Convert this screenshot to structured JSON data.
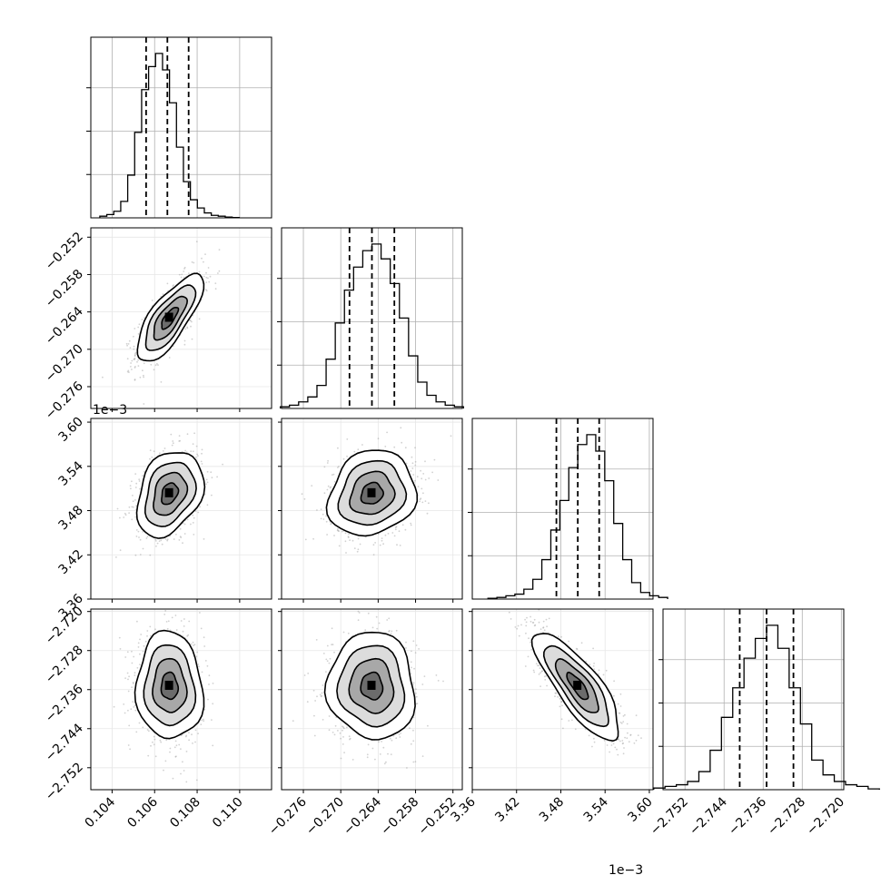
{
  "chart_data": {
    "type": "corner",
    "description_free": true,
    "parameters": [
      {
        "range": [
          0.103,
          0.1115
        ],
        "ticks": [
          0.104,
          0.106,
          0.108,
          0.11
        ],
        "tick_labels": [
          "0.104",
          "0.106",
          "0.108",
          "0.110"
        ],
        "quantiles": [
          0.1056,
          0.1066,
          0.1076
        ],
        "mean": 0.1067,
        "sd": 0.00078,
        "offset_text": ""
      },
      {
        "range": [
          -0.2795,
          -0.2505
        ],
        "ticks": [
          -0.276,
          -0.27,
          -0.264,
          -0.258,
          -0.252
        ],
        "tick_labels": [
          "−0.276",
          "−0.270",
          "−0.264",
          "−0.258",
          "−0.252"
        ],
        "quantiles": [
          -0.2686,
          -0.265,
          -0.2614
        ],
        "mean": -0.265,
        "sd": 0.0035,
        "offset_text": ""
      },
      {
        "range": [
          3.36,
          3.605
        ],
        "ticks": [
          3.36,
          3.42,
          3.48,
          3.54,
          3.6
        ],
        "tick_labels": [
          "3.36",
          "3.42",
          "3.48",
          "3.54",
          "3.60"
        ],
        "quantiles": [
          3.474,
          3.503,
          3.532
        ],
        "mean": 3.503,
        "sd": 0.029,
        "offset_text": "1e−3"
      },
      {
        "range": [
          -2.7565,
          -2.7195
        ],
        "ticks": [
          -2.752,
          -2.744,
          -2.736,
          -2.728,
          -2.72
        ],
        "tick_labels": [
          "−2.752",
          "−2.744",
          "−2.736",
          "−2.728",
          "−2.720"
        ],
        "quantiles": [
          -2.7408,
          -2.7353,
          -2.7298
        ],
        "mean": -2.7353,
        "sd": 0.0055,
        "offset_text": "1e−3"
      }
    ],
    "histograms": [
      [
        0.01,
        0.02,
        0.04,
        0.1,
        0.26,
        0.52,
        0.78,
        0.92,
        1.0,
        0.9,
        0.7,
        0.43,
        0.22,
        0.11,
        0.06,
        0.03,
        0.015,
        0.01,
        0.005,
        0.002
      ],
      [
        0.01,
        0.02,
        0.04,
        0.07,
        0.14,
        0.3,
        0.52,
        0.72,
        0.86,
        0.96,
        1.0,
        0.91,
        0.76,
        0.55,
        0.32,
        0.16,
        0.08,
        0.04,
        0.02,
        0.01
      ],
      [
        0.005,
        0.01,
        0.02,
        0.03,
        0.06,
        0.12,
        0.24,
        0.42,
        0.6,
        0.8,
        0.94,
        1.0,
        0.9,
        0.72,
        0.46,
        0.24,
        0.1,
        0.04,
        0.02,
        0.01
      ],
      [
        0.01,
        0.02,
        0.03,
        0.05,
        0.11,
        0.24,
        0.44,
        0.62,
        0.8,
        0.92,
        1.0,
        0.86,
        0.62,
        0.4,
        0.18,
        0.09,
        0.05,
        0.03,
        0.02,
        0.005
      ]
    ],
    "correlations": {
      "1-0": 0.75,
      "2-0": 0.3,
      "2-1": 0.15,
      "3-0": -0.05,
      "3-1": -0.05,
      "3-2": -0.8
    },
    "quantile_levels": [
      0.16,
      0.5,
      0.84
    ],
    "contour_levels_sigma": [
      0.5,
      1.0,
      1.5,
      2.0
    ],
    "grid": true,
    "colors": {
      "line": "#000000",
      "grid": "#b0b0b0",
      "points": "#9a9a9a"
    }
  }
}
